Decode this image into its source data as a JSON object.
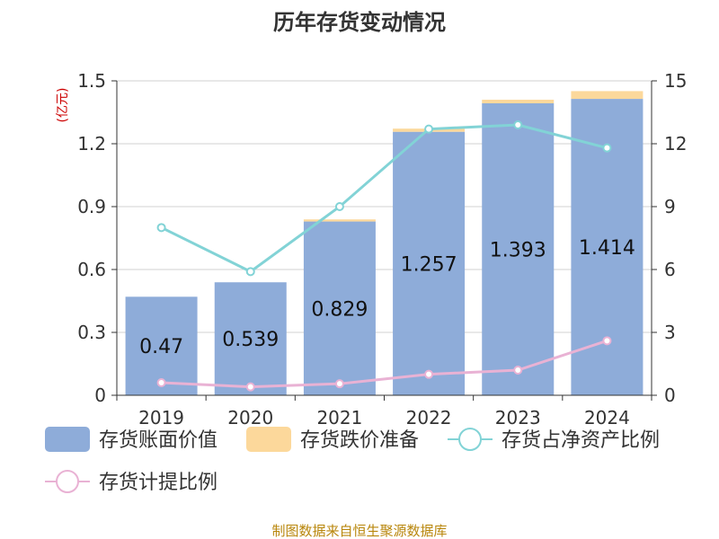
{
  "chart_data": {
    "type": "bar",
    "title": "历年存货变动情况",
    "left_unit": "(亿元)",
    "categories": [
      "2019",
      "2020",
      "2021",
      "2022",
      "2023",
      "2024"
    ],
    "series": [
      {
        "name": "存货账面价值",
        "kind": "bar",
        "axis": "left",
        "color": "#8eacd9",
        "values": [
          0.47,
          0.539,
          0.829,
          1.257,
          1.393,
          1.414
        ]
      },
      {
        "name": "存货跌价准备",
        "kind": "bar-stack",
        "axis": "left",
        "color": "#fcd89b",
        "values": [
          0.0,
          0.0,
          0.01,
          0.015,
          0.017,
          0.037
        ]
      },
      {
        "name": "存货占净资产比例",
        "kind": "line",
        "axis": "right",
        "color": "#82d3d6",
        "values": [
          8.0,
          5.9,
          9.0,
          12.7,
          12.9,
          11.8
        ]
      },
      {
        "name": "存货计提比例",
        "kind": "line",
        "axis": "right",
        "color": "#e9b2d4",
        "values": [
          0.6,
          0.4,
          0.55,
          1.0,
          1.2,
          2.6
        ]
      }
    ],
    "y_left": {
      "min": 0,
      "max": 1.5,
      "ticks": [
        "0",
        "0.3",
        "0.6",
        "0.9",
        "1.2",
        "1.5"
      ]
    },
    "y_right": {
      "min": 0,
      "max": 15,
      "ticks": [
        "0",
        "3",
        "6",
        "9",
        "12",
        "15"
      ]
    },
    "grid": true,
    "legend_position": "bottom"
  },
  "source": "制图数据来自恒生聚源数据库"
}
